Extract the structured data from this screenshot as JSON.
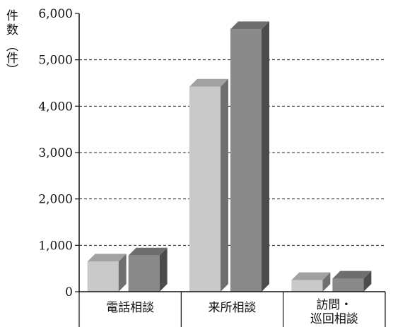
{
  "chart_data": {
    "type": "bar",
    "ylabel": "件数（件）",
    "ylim": [
      0,
      6000
    ],
    "ytick_labels": [
      "0",
      "1,000",
      "2,000",
      "3,000",
      "4,000",
      "5,000",
      "6,000"
    ],
    "grid": "dashed horizontal",
    "categories": [
      {
        "label_lines": [
          "電話相談"
        ]
      },
      {
        "label_lines": [
          "来所相談"
        ]
      },
      {
        "label_lines": [
          "訪問・",
          "巡回相談"
        ]
      }
    ],
    "series": [
      {
        "color": "#c9c9c9",
        "values": [
          650,
          4420,
          250
        ]
      },
      {
        "color": "#8a8a8a",
        "values": [
          780,
          5660,
          280
        ]
      }
    ]
  },
  "y_axis_title": {
    "chars": [
      "件",
      "数"
    ],
    "unit": "（件）"
  }
}
